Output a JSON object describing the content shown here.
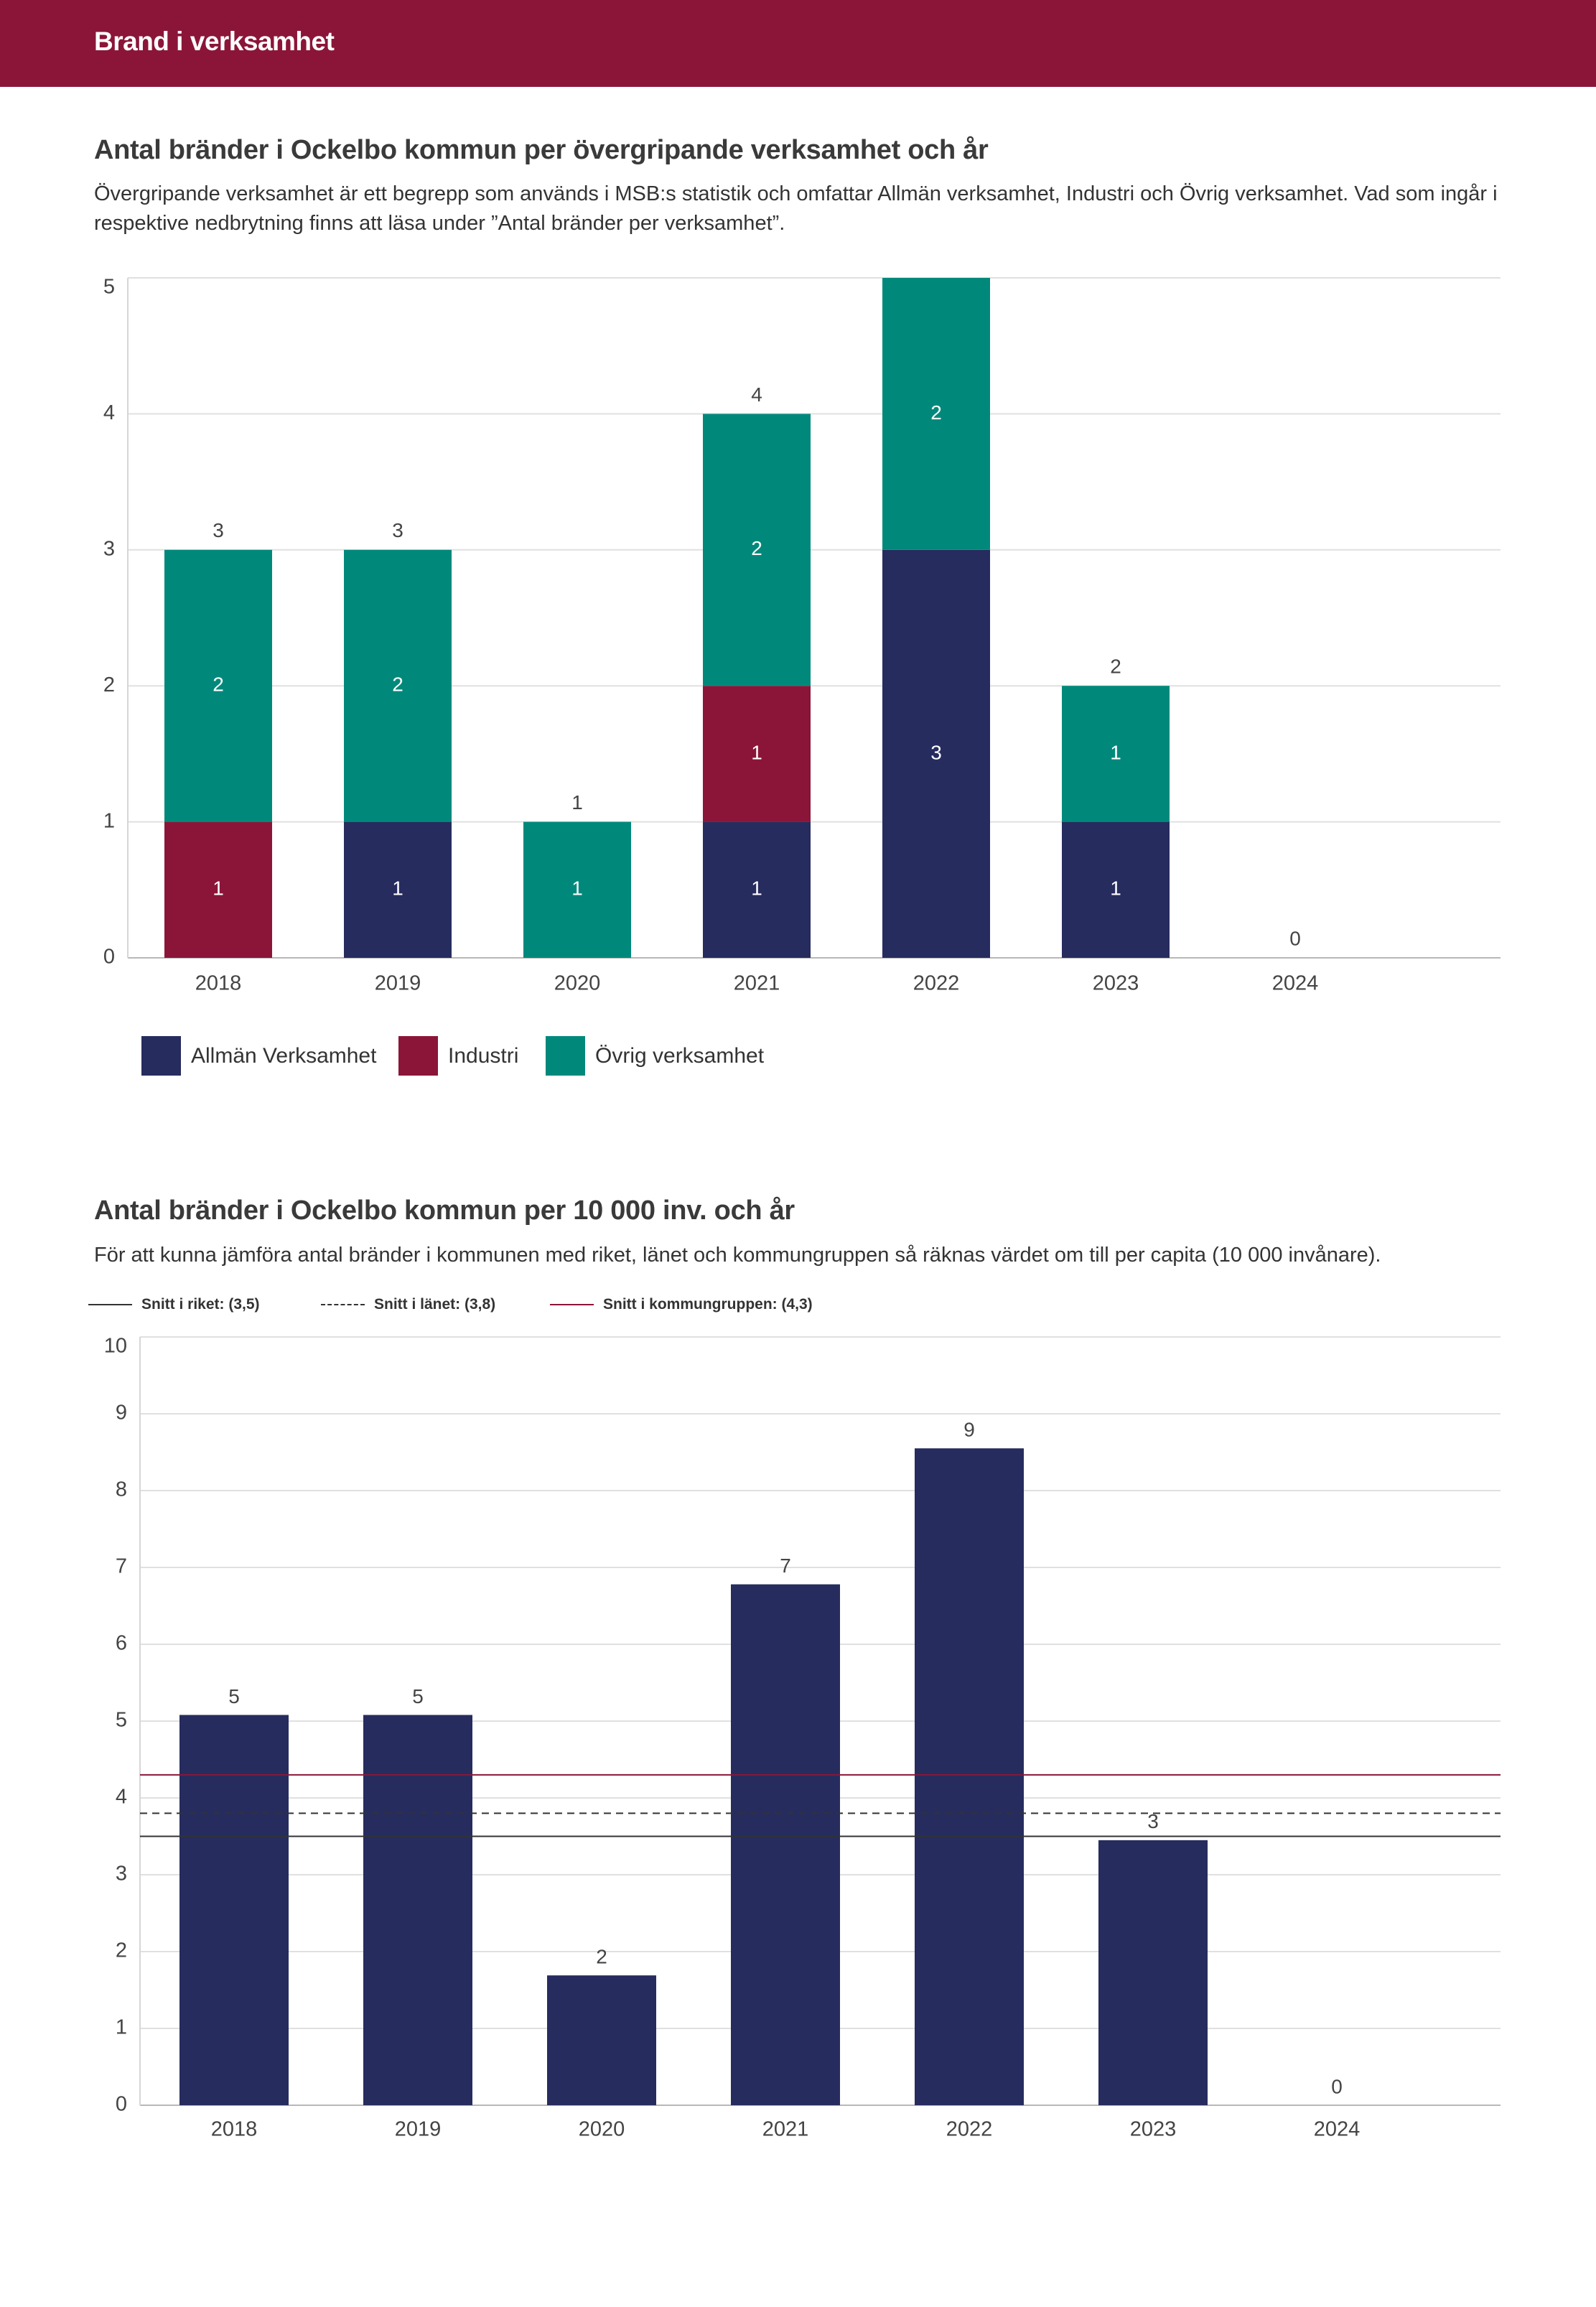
{
  "header": {
    "title": "Brand i verksamhet"
  },
  "colors": {
    "header_bg": "#8B1538",
    "allman": "#262C5E",
    "industri": "#8B1538",
    "ovrig": "#00897B",
    "text": "#333333"
  },
  "chart_data": [
    {
      "type": "bar",
      "stacked": true,
      "title": "Antal bränder i Ockelbo kommun per övergripande verksamhet och år",
      "subtitle": "Övergripande verksamhet är ett begrepp som används i MSB:s statistik och omfattar Allmän verksamhet, Industri och Övrig verksamhet. Vad som ingår i respektive nedbrytning finns att läsa under ”Antal bränder per verksamhet”.",
      "categories": [
        "2018",
        "2019",
        "2020",
        "2021",
        "2022",
        "2023",
        "2024"
      ],
      "series": [
        {
          "name": "Allmän Verksamhet",
          "values": [
            0,
            1,
            0,
            1,
            3,
            1,
            0
          ],
          "color": "#262C5E"
        },
        {
          "name": "Industri",
          "values": [
            1,
            0,
            0,
            1,
            0,
            0,
            0
          ],
          "color": "#8B1538"
        },
        {
          "name": "Övrig verksamhet",
          "values": [
            2,
            2,
            1,
            2,
            2,
            1,
            0
          ],
          "color": "#00897B"
        }
      ],
      "totals": [
        3,
        3,
        1,
        4,
        5,
        2,
        0
      ],
      "ylim": [
        0,
        5
      ],
      "yticks": [
        0,
        1,
        2,
        3,
        4,
        5
      ],
      "xlabel": "",
      "ylabel": "",
      "grid": true,
      "legend": "bottom-left"
    },
    {
      "type": "bar",
      "title": "Antal bränder i Ockelbo kommun per 10 000 inv. och år",
      "subtitle": "För att kunna jämföra antal bränder i kommunen med riket, länet och kommungruppen så räknas värdet om till per capita (10 000 invånare).",
      "categories": [
        "2018",
        "2019",
        "2020",
        "2021",
        "2022",
        "2023",
        "2024"
      ],
      "values": [
        5.08,
        5.08,
        1.69,
        6.78,
        8.55,
        3.45,
        0
      ],
      "data_labels": [
        "5",
        "5",
        "2",
        "7",
        "9",
        "3",
        "0"
      ],
      "color": "#262C5E",
      "ylim": [
        0,
        10
      ],
      "yticks": [
        0,
        1,
        2,
        3,
        4,
        5,
        6,
        7,
        8,
        9,
        10
      ],
      "reference_lines": [
        {
          "label": "Snitt i riket: (3,5)",
          "value": 3.5,
          "style": "solid",
          "color": "#333333"
        },
        {
          "label": "Snitt i länet: (3,8)",
          "value": 3.8,
          "style": "dashed",
          "color": "#333333"
        },
        {
          "label": "Snitt i kommungruppen: (4,3)",
          "value": 4.3,
          "style": "solid",
          "color": "#8B1538"
        }
      ],
      "xlabel": "",
      "ylabel": "",
      "grid": true,
      "legend": "top-left"
    }
  ]
}
